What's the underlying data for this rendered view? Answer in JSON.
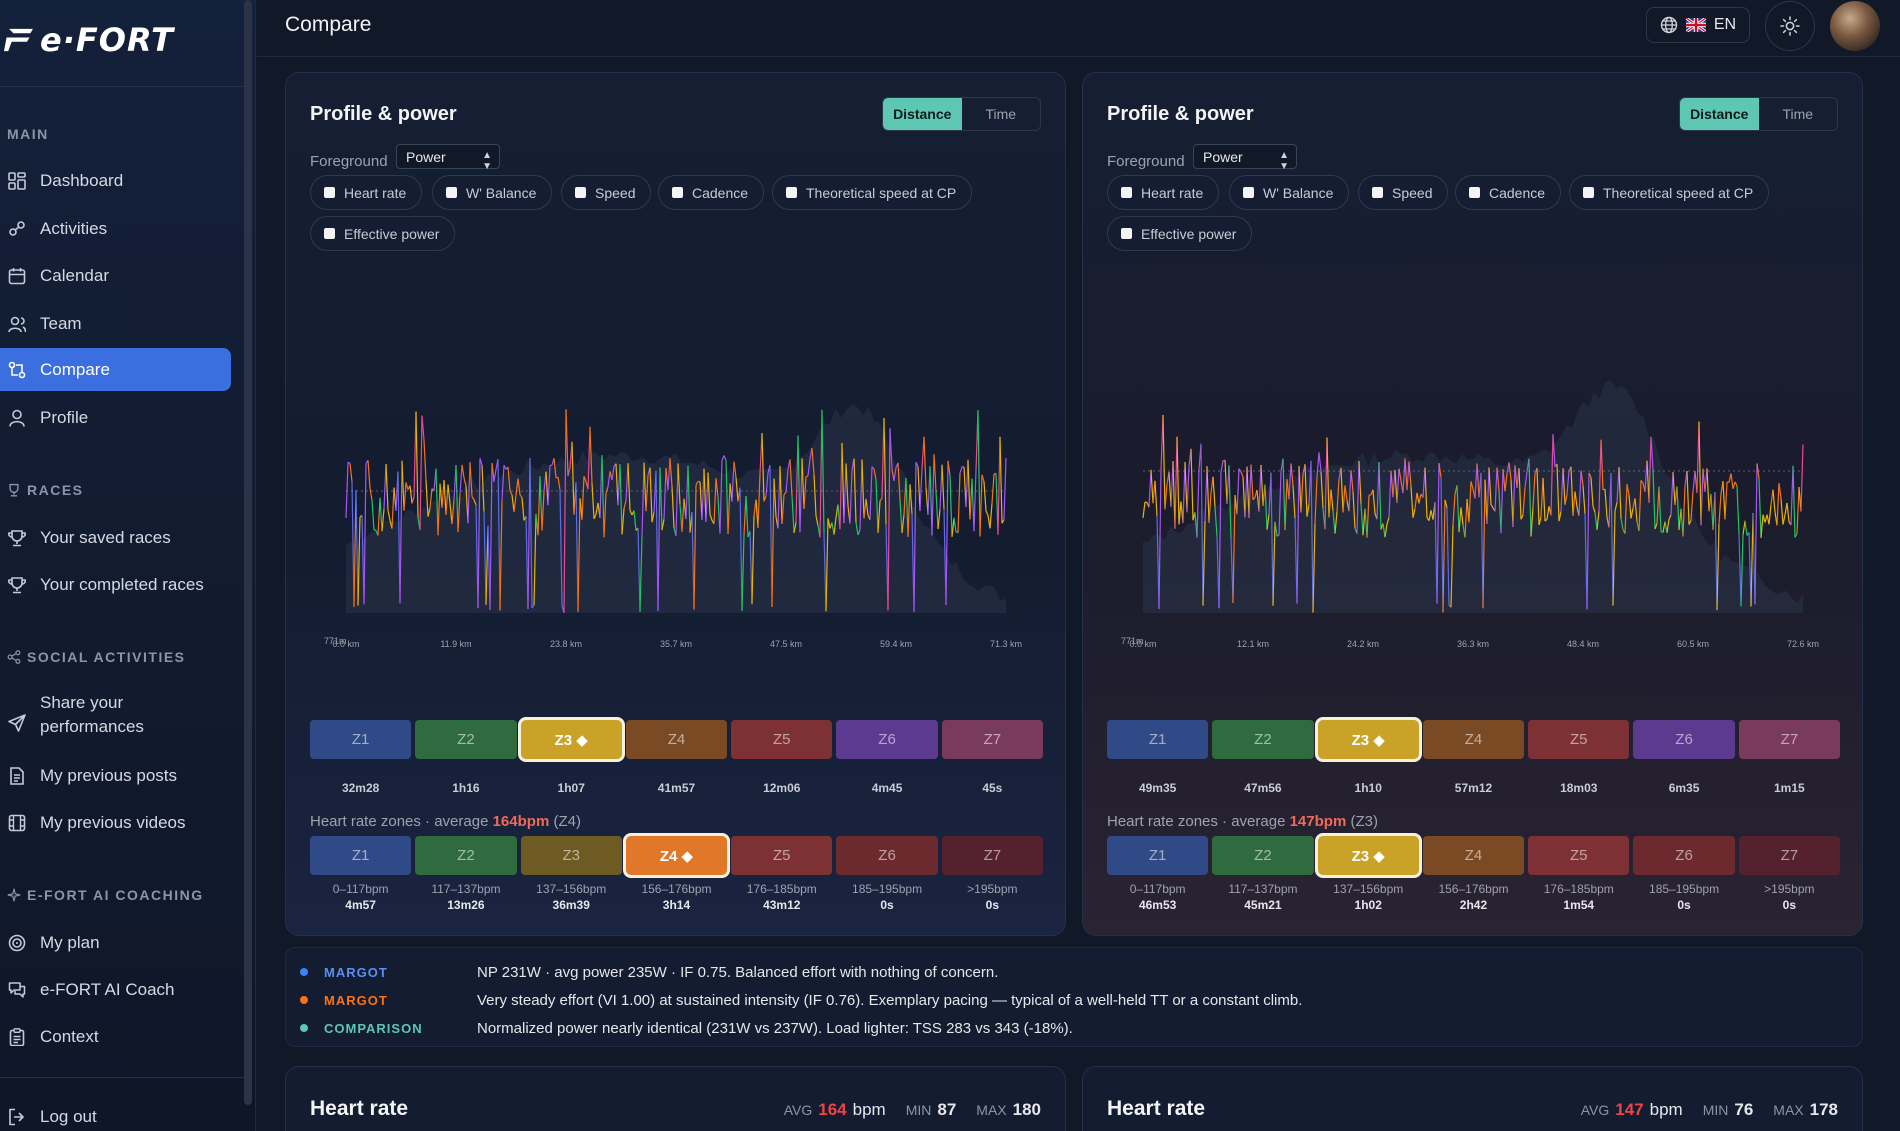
{
  "app": {
    "logo": "e·FORT"
  },
  "sidebar": {
    "sections": {
      "main": "MAIN",
      "races": "RACES",
      "social": "SOCIAL ACTIVITIES",
      "coaching": "E-FORT AI COACHING"
    },
    "items": [
      {
        "label": "Dashboard",
        "icon": "grid-icon"
      },
      {
        "label": "Activities",
        "icon": "activity-icon"
      },
      {
        "label": "Calendar",
        "icon": "calendar-icon"
      },
      {
        "label": "Team",
        "icon": "team-icon"
      },
      {
        "label": "Compare",
        "icon": "compare-icon",
        "active": true
      },
      {
        "label": "Profile",
        "icon": "user-icon"
      },
      {
        "label": "Your saved races",
        "icon": "trophy-icon"
      },
      {
        "label": "Your completed races",
        "icon": "trophy-icon"
      },
      {
        "label": "Share your performances",
        "icon": "send-icon"
      },
      {
        "label": "My previous posts",
        "icon": "document-icon"
      },
      {
        "label": "My previous videos",
        "icon": "film-icon"
      },
      {
        "label": "My plan",
        "icon": "target-icon"
      },
      {
        "label": "e-FORT AI Coach",
        "icon": "chat-icon"
      },
      {
        "label": "Context",
        "icon": "clipboard-icon"
      },
      {
        "label": "Log out",
        "icon": "logout-icon"
      }
    ]
  },
  "header": {
    "title": "Compare",
    "language": "EN"
  },
  "panels": [
    {
      "title": "Profile & power",
      "toggle": {
        "distance": "Distance",
        "time": "Time",
        "selected": "Distance"
      },
      "foreground_label": "Foreground",
      "foreground_value": "Power",
      "chips": [
        "Heart rate",
        "W' Balance",
        "Speed",
        "Cadence",
        "Theoretical speed at CP",
        "Effective power"
      ],
      "axis": {
        "x_ticks": [
          "0.0 km",
          "11.9 km",
          "23.8 km",
          "35.7 km",
          "47.5 km",
          "59.4 km",
          "71.3 km"
        ],
        "elev_min": "771m"
      },
      "power_zones": [
        "Z1",
        "Z2",
        "Z3 ◆",
        "Z4",
        "Z5",
        "Z6",
        "Z7"
      ],
      "power_zone_selected": 2,
      "power_zone_times": [
        "32m28",
        "1h16",
        "1h07",
        "41m57",
        "12m06",
        "4m45",
        "45s"
      ],
      "hr_zones_title_prefix": "Heart rate zones · average ",
      "hr_zones_avg": "164bpm",
      "hr_zones_title_suffix": " (Z4)",
      "hr_zones": [
        "Z1",
        "Z2",
        "Z3",
        "Z4 ◆",
        "Z5",
        "Z6",
        "Z7"
      ],
      "hr_zone_selected": 3,
      "hr_zone_ranges": [
        "0–117bpm",
        "117–137bpm",
        "137–156bpm",
        "156–176bpm",
        "176–185bpm",
        "185–195bpm",
        ">195bpm"
      ],
      "hr_zone_times": [
        "4m57",
        "13m26",
        "36m39",
        "3h14",
        "43m12",
        "0s",
        "0s"
      ]
    },
    {
      "title": "Profile & power",
      "toggle": {
        "distance": "Distance",
        "time": "Time",
        "selected": "Distance"
      },
      "foreground_label": "Foreground",
      "foreground_value": "Power",
      "chips": [
        "Heart rate",
        "W' Balance",
        "Speed",
        "Cadence",
        "Theoretical speed at CP",
        "Effective power"
      ],
      "axis": {
        "x_ticks": [
          "0.0 km",
          "12.1 km",
          "24.2 km",
          "36.3 km",
          "48.4 km",
          "60.5 km",
          "72.6 km"
        ],
        "elev_min": "771m"
      },
      "power_zones": [
        "Z1",
        "Z2",
        "Z3 ◆",
        "Z4",
        "Z5",
        "Z6",
        "Z7"
      ],
      "power_zone_selected": 2,
      "power_zone_times": [
        "49m35",
        "47m56",
        "1h10",
        "57m12",
        "18m03",
        "6m35",
        "1m15"
      ],
      "hr_zones_title_prefix": "Heart rate zones · average ",
      "hr_zones_avg": "147bpm",
      "hr_zones_title_suffix": " (Z3)",
      "hr_zones": [
        "Z1",
        "Z2",
        "Z3 ◆",
        "Z4",
        "Z5",
        "Z6",
        "Z7"
      ],
      "hr_zone_selected": 2,
      "hr_zone_ranges": [
        "0–117bpm",
        "117–137bpm",
        "137–156bpm",
        "156–176bpm",
        "176–185bpm",
        "185–195bpm",
        ">195bpm"
      ],
      "hr_zone_times": [
        "46m53",
        "45m21",
        "1h02",
        "2h42",
        "1m54",
        "0s",
        "0s"
      ]
    }
  ],
  "notes": [
    {
      "who": "MARGOT",
      "color": "#3b82f6",
      "text": "NP 231W · avg power 235W · IF 0.75. Balanced effort with nothing of concern."
    },
    {
      "who": "MARGOT",
      "color": "#f97316",
      "text": "Very steady effort (VI 1.00) at sustained intensity (IF 0.76). Exemplary pacing — typical of a well-held TT or a constant climb."
    },
    {
      "who": "COMPARISON",
      "color": "#5ec7b4",
      "text": "Normalized power nearly identical (231W vs 237W). Load lighter: TSS 283 vs 343 (-18%)."
    }
  ],
  "heart_rate": [
    {
      "title": "Heart rate",
      "avg_label": "AVG",
      "avg": "164",
      "unit": "bpm",
      "min_label": "MIN",
      "min": "87",
      "max_label": "MAX",
      "max": "180"
    },
    {
      "title": "Heart rate",
      "avg_label": "AVG",
      "avg": "147",
      "unit": "bpm",
      "min_label": "MIN",
      "min": "76",
      "max_label": "MAX",
      "max": "178"
    }
  ],
  "colors": {
    "accent": "#3b6fe0",
    "toggle_on": "#5ec7b4",
    "zones_power": [
      "#2f4a86",
      "#2f6b3e",
      "#c9a227",
      "#7a4a25",
      "#7d3134",
      "#5b3a8f",
      "#7a3a5b"
    ],
    "zones_hr": [
      "#2f4a86",
      "#2f6b3e",
      "#6e5a23",
      "#e0782a",
      "#7d3134",
      "#6d2a2e",
      "#55212e"
    ],
    "zones_hr_right": [
      "#2f4a86",
      "#2f6b3e",
      "#c9a227",
      "#7a4a25",
      "#7d3134",
      "#6d2a2e",
      "#55212e"
    ]
  }
}
